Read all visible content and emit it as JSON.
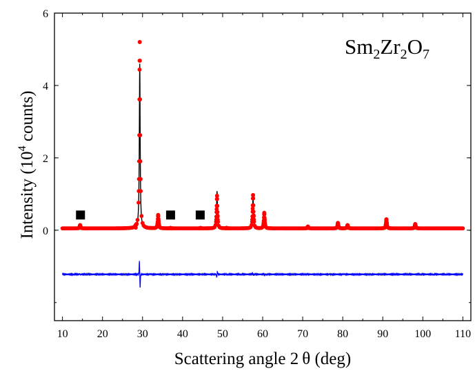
{
  "chart_data": {
    "type": "scatter",
    "title": "",
    "annotation": {
      "base1": "Sm",
      "sub1": "2",
      "base2": "Zr",
      "sub2": "2",
      "base3": "O",
      "sub3": "7"
    },
    "xlabel": "Scattering angle 2 θ (deg)",
    "ylabel": {
      "prefix": "Intensity (10",
      "sup": "4",
      "suffix": " counts)"
    },
    "xlim": [
      8,
      112
    ],
    "ylim": [
      -2.5,
      6
    ],
    "xticks": [
      "10",
      "20",
      "30",
      "40",
      "50",
      "60",
      "70",
      "80",
      "90",
      "100",
      "110"
    ],
    "yticks": [
      "0",
      "2",
      "4",
      "6"
    ],
    "xtick_values": [
      10,
      20,
      30,
      40,
      50,
      60,
      70,
      80,
      90,
      100,
      110
    ],
    "ytick_values": [
      0,
      2,
      4,
      6
    ],
    "background": 0.05,
    "difference_offset": -1.22,
    "peaks": [
      {
        "x": 14.4,
        "obs": 0.14,
        "calc": 0.12
      },
      {
        "x": 28.3,
        "obs": 0.07,
        "calc": 0.06
      },
      {
        "x": 29.3,
        "obs": 5.2,
        "calc": 4.6
      },
      {
        "x": 33.9,
        "obs": 0.42,
        "calc": 0.42
      },
      {
        "x": 37.0,
        "obs": 0.06,
        "calc": 0.06
      },
      {
        "x": 44.5,
        "obs": 0.06,
        "calc": 0.05
      },
      {
        "x": 48.6,
        "obs": 0.95,
        "calc": 1.08
      },
      {
        "x": 51.0,
        "obs": 0.06,
        "calc": 0.05
      },
      {
        "x": 57.6,
        "obs": 0.97,
        "calc": 0.92
      },
      {
        "x": 60.4,
        "obs": 0.48,
        "calc": 0.44
      },
      {
        "x": 71.3,
        "obs": 0.1,
        "calc": 0.09
      },
      {
        "x": 78.8,
        "obs": 0.2,
        "calc": 0.2
      },
      {
        "x": 81.2,
        "obs": 0.14,
        "calc": 0.13
      },
      {
        "x": 90.9,
        "obs": 0.3,
        "calc": 0.28
      },
      {
        "x": 98.1,
        "obs": 0.17,
        "calc": 0.17
      }
    ],
    "markers": [
      {
        "x": 14.5,
        "y": 0.42
      },
      {
        "x": 37.0,
        "y": 0.42
      },
      {
        "x": 44.4,
        "y": 0.42
      }
    ],
    "series_colors": {
      "observed": "#ff0000",
      "calculated": "#000000",
      "difference": "#0000ff",
      "markers": "#000000"
    },
    "grid": false
  }
}
